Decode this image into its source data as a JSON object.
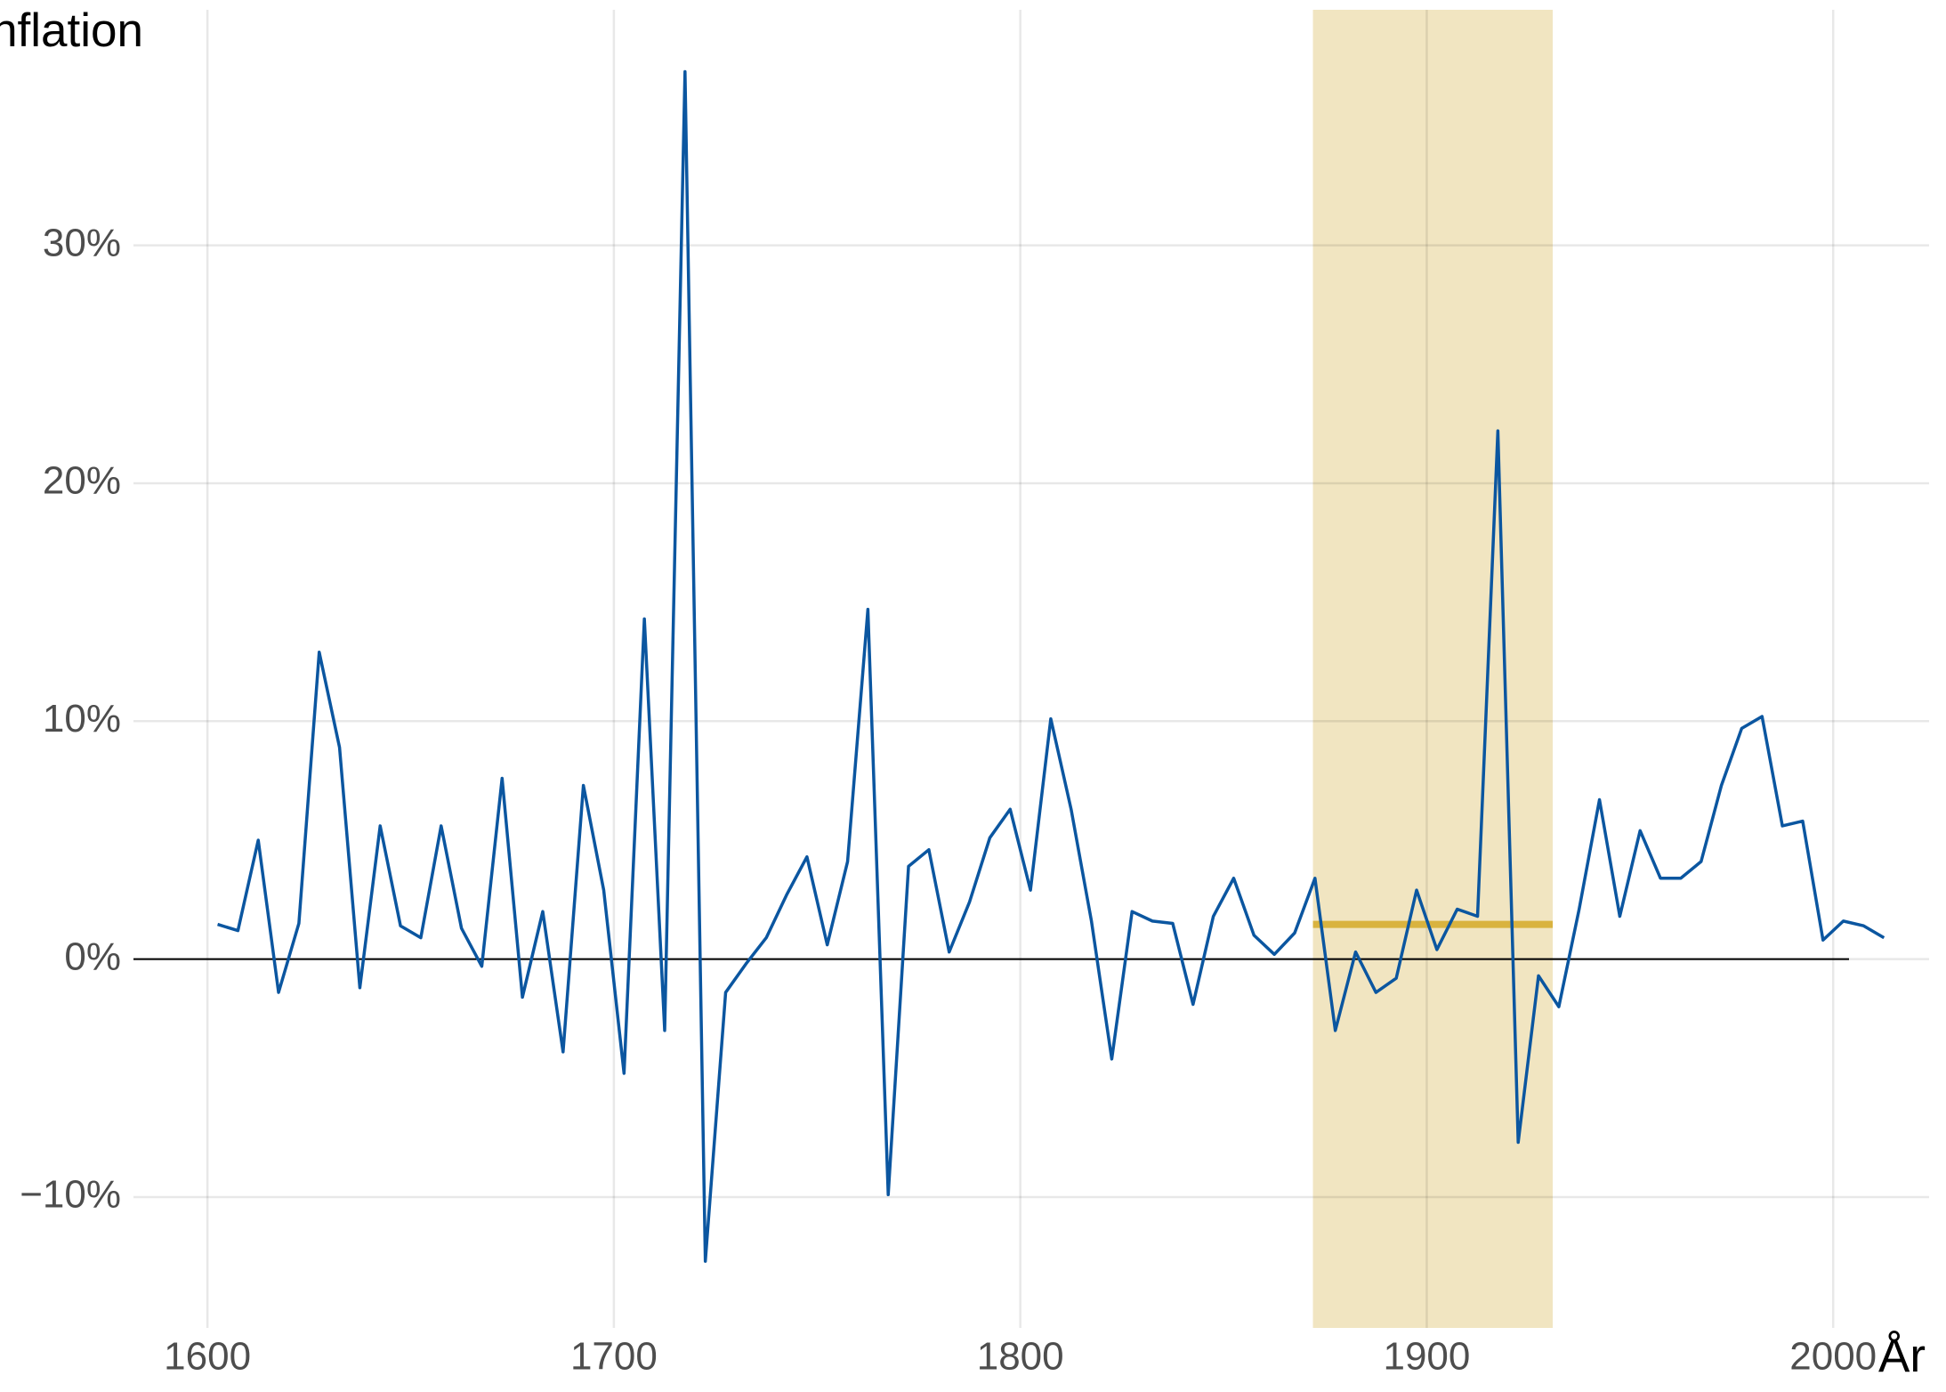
{
  "chart_data": {
    "type": "line",
    "title": "Inflation",
    "x_label": "År",
    "x": [
      1602.5,
      1607.5,
      1612.5,
      1617.5,
      1622.5,
      1627.5,
      1632.5,
      1637.5,
      1642.5,
      1647.5,
      1652.5,
      1657.5,
      1662.5,
      1667.5,
      1672.5,
      1677.5,
      1682.5,
      1687.5,
      1692.5,
      1697.5,
      1702.5,
      1707.5,
      1712.5,
      1717.5,
      1722.5,
      1727.5,
      1732.5,
      1737.5,
      1742.5,
      1747.5,
      1752.5,
      1757.5,
      1762.5,
      1767.5,
      1772.5,
      1777.5,
      1782.5,
      1787.5,
      1792.5,
      1797.5,
      1802.5,
      1807.5,
      1812.5,
      1817.5,
      1822.5,
      1827.5,
      1832.5,
      1837.5,
      1842.5,
      1847.5,
      1852.5,
      1857.5,
      1862.5,
      1867.5,
      1872.5,
      1877.5,
      1882.5,
      1887.5,
      1892.5,
      1897.5,
      1902.5,
      1907.5,
      1912.5,
      1917.5,
      1922.5,
      1927.5,
      1932.5,
      1937.5,
      1942.5,
      1947.5,
      1952.5,
      1957.5,
      1962.5,
      1967.5,
      1972.5,
      1977.5,
      1982.5,
      1987.5,
      1992.5,
      1997.5,
      2002.5,
      2007.5,
      2012.5
    ],
    "series": [
      {
        "name": "Inflation",
        "color": "#0b56a0",
        "values": [
          1.46,
          1.2,
          5.0,
          -1.4,
          1.5,
          12.9,
          8.9,
          -1.2,
          5.6,
          1.4,
          0.9,
          5.6,
          1.3,
          -0.3,
          7.6,
          -1.6,
          2.0,
          -3.9,
          7.3,
          2.9,
          -4.8,
          14.3,
          -3.0,
          37.3,
          -12.7,
          -1.4,
          -0.2,
          0.9,
          2.7,
          4.3,
          0.6,
          4.1,
          14.7,
          -9.9,
          3.9,
          4.6,
          0.3,
          2.4,
          5.1,
          6.3,
          2.9,
          10.1,
          6.3,
          1.6,
          -4.2,
          2.0,
          1.6,
          1.5,
          -1.9,
          1.8,
          3.4,
          1.0,
          0.2,
          1.1,
          3.4,
          -3.0,
          0.3,
          -1.4,
          -0.8,
          2.9,
          0.4,
          2.1,
          1.8,
          22.2,
          -7.7,
          -0.7,
          -2.0,
          2.1,
          6.7,
          1.8,
          5.4,
          3.4,
          3.4,
          4.1,
          7.3,
          9.7,
          10.2,
          5.6,
          5.8,
          0.8,
          1.6,
          1.4,
          0.9
        ]
      }
    ],
    "band": {
      "x": [
        1872,
        1931
      ],
      "value": 1.46,
      "color": "#f1e5c1",
      "line_color": "#d9b33f"
    },
    "xlim": [
      1581.8,
      2023.6
    ],
    "xticks": [
      1600,
      1700,
      1800,
      1900,
      2000
    ],
    "ylim": [
      -15.5,
      39.9
    ],
    "yticks": [
      {
        "value": -10,
        "label": "−10%"
      },
      {
        "value": 0,
        "label": "0%"
      },
      {
        "value": 10,
        "label": "10%"
      },
      {
        "value": 20,
        "label": "20%"
      },
      {
        "value": 30,
        "label": "30%"
      }
    ],
    "grid": true
  }
}
